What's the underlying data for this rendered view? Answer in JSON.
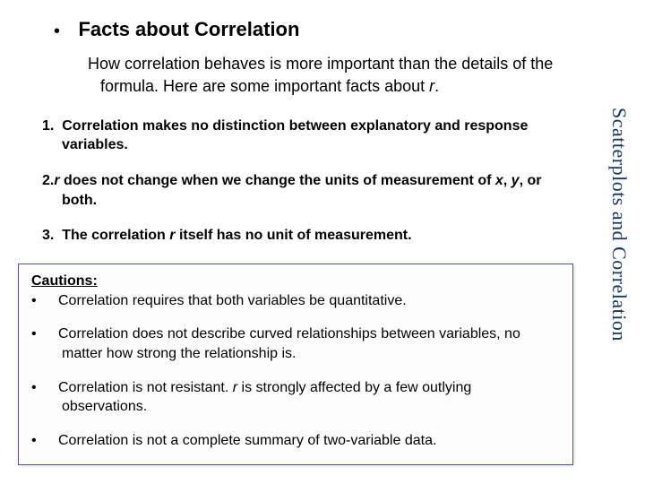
{
  "title": "Facts about Correlation",
  "intro_part1": "How correlation behaves is more important than the details of the formula.  Here are some important facts about ",
  "intro_ital": "r",
  "intro_part2": ".",
  "facts": [
    {
      "num": "1.",
      "text": "Correlation makes no distinction between explanatory and response variables."
    },
    {
      "num": "2.",
      "pre": "",
      "ital1": "r",
      "mid1": " does not change when we change the units of measurement of ",
      "ital2": "x",
      "mid2": ", ",
      "ital3": "y",
      "post": ", or both."
    },
    {
      "num": "3.",
      "pre": "The correlation ",
      "ital1": "r",
      "post": " itself has no unit of measurement."
    }
  ],
  "cautions_heading": "Cautions:",
  "cautions": [
    "Correlation requires that both variables be quantitative.",
    "Correlation does not describe curved relationships between variables, no matter how strong the relationship is.",
    "Correlation is not resistant. |r| is strongly affected by a few outlying observations.",
    "Correlation is not a complete summary of two-variable data."
  ],
  "sidetext": "Scatterplots and Correlation",
  "colors": {
    "sidetext": "#17365d",
    "box_border": "#4a5a8a",
    "text": "#000000",
    "bg": "#ffffff"
  }
}
